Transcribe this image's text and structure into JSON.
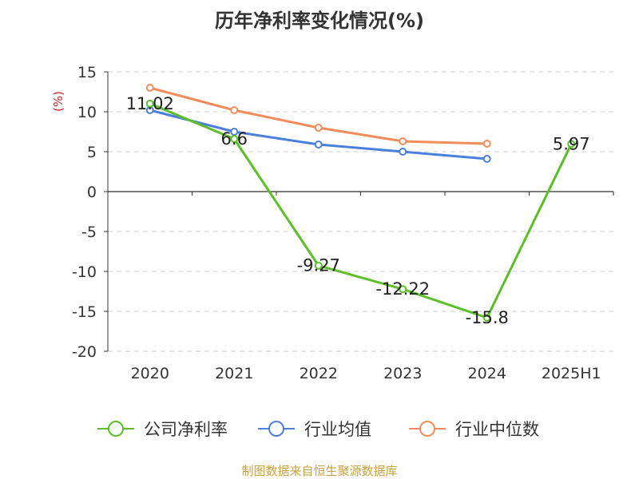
{
  "chart_data": {
    "type": "line",
    "title": "历年净利率变化情况(%)",
    "ylabel": "(%)",
    "xlabel": "",
    "categories": [
      "2020",
      "2021",
      "2022",
      "2023",
      "2024",
      "2025H1"
    ],
    "ylim": [
      -20,
      15
    ],
    "yticks": [
      15,
      10,
      5,
      0,
      -5,
      -10,
      -15,
      -20
    ],
    "grid": true,
    "legend_position": "bottom",
    "series": [
      {
        "name": "公司净利率",
        "color": "#5cbf2a",
        "values": [
          11.02,
          6.6,
          -9.27,
          -12.22,
          -15.8,
          5.97
        ],
        "labels": [
          "11.02",
          "6.6",
          "-9.27",
          "-12.22",
          "-15.8",
          "5.97"
        ]
      },
      {
        "name": "行业均值",
        "color": "#4b7fdc",
        "values": [
          10.2,
          7.5,
          5.9,
          5.0,
          4.1,
          null
        ]
      },
      {
        "name": "行业中位数",
        "color": "#f28c5a",
        "values": [
          13.0,
          10.2,
          8.0,
          6.3,
          6.0,
          null
        ]
      }
    ]
  },
  "source_text": "制图数据来自恒生聚源数据库"
}
